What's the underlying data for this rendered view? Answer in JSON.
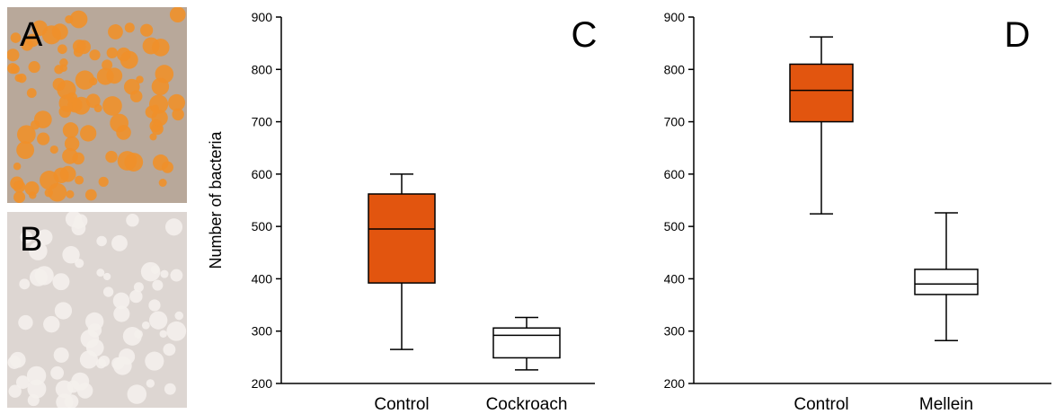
{
  "panels": {
    "photo_a_label": "A",
    "photo_b_label": "B"
  },
  "colors": {
    "orange_box": "#e2550f",
    "white_box": "#ffffff",
    "photo_a_bg": "#b8a89a",
    "photo_a_colony": "#f0902a",
    "photo_b_bg": "#ddd6d2",
    "photo_b_colony": "#f4efec"
  },
  "chart_data": [
    {
      "type": "box",
      "panel_label": "C",
      "ylabel": "Number of bacteria",
      "xlabel": "",
      "ylim": [
        200,
        900
      ],
      "yticks": [
        200,
        300,
        400,
        500,
        600,
        700,
        800,
        900
      ],
      "categories": [
        "Control",
        "Cockroach"
      ],
      "boxes": [
        {
          "category": "Control",
          "min": 265,
          "q1": 392,
          "median": 495,
          "q3": 562,
          "max": 600,
          "fill": "#e2550f"
        },
        {
          "category": "Cockroach",
          "min": 226,
          "q1": 249,
          "median": 292,
          "q3": 306,
          "max": 326,
          "fill": "#ffffff"
        }
      ]
    },
    {
      "type": "box",
      "panel_label": "D",
      "ylabel": "",
      "xlabel": "",
      "ylim": [
        200,
        900
      ],
      "yticks": [
        200,
        300,
        400,
        500,
        600,
        700,
        800,
        900
      ],
      "categories": [
        "Control",
        "Mellein"
      ],
      "boxes": [
        {
          "category": "Control",
          "min": 524,
          "q1": 700,
          "median": 760,
          "q3": 810,
          "max": 862,
          "fill": "#e2550f"
        },
        {
          "category": "Mellein",
          "min": 282,
          "q1": 370,
          "median": 390,
          "q3": 418,
          "max": 526,
          "fill": "#ffffff"
        }
      ]
    }
  ]
}
